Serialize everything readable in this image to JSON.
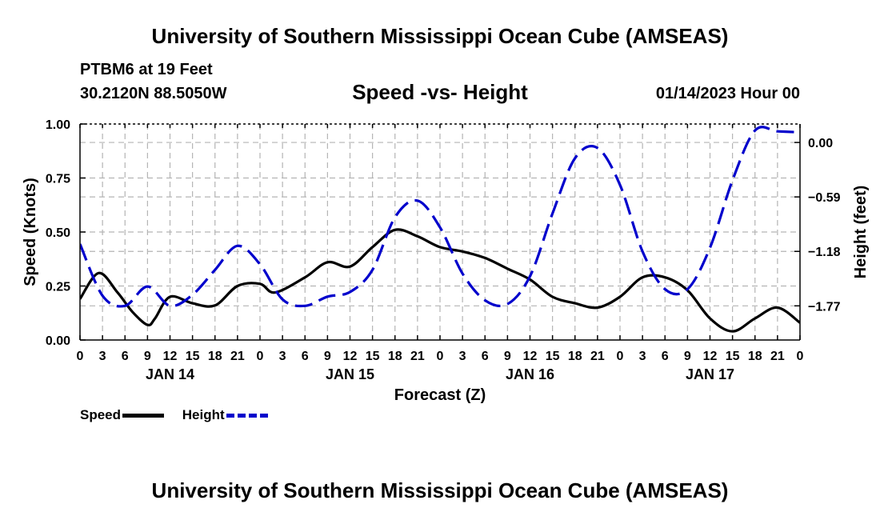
{
  "header": {
    "title": "University of Southern Mississippi Ocean Cube (AMSEAS)",
    "station": "PTBM6 at 19 Feet",
    "coords": "30.2120N  88.5050W",
    "subtitle": "Speed -vs- Height",
    "datestamp": "01/14/2023 Hour 00"
  },
  "footer": {
    "title": "University of Southern Mississippi Ocean Cube (AMSEAS)"
  },
  "colors": {
    "speed": "#000000",
    "height": "#0000cc",
    "grid": "#b4b4b4"
  },
  "legend": {
    "speed_label": "Speed",
    "height_label": "Height"
  },
  "chart_data": {
    "type": "line",
    "title": "Speed -vs- Height",
    "xlabel": "Forecast (Z)",
    "ylabel_left": "Speed (Knots)",
    "ylabel_right": "Height (feet)",
    "xlim": [
      0,
      96
    ],
    "ylim_left": [
      0,
      1.0
    ],
    "ylim_right": [
      -2.14,
      0.2
    ],
    "left_ticks": [
      "0.00",
      "0.25",
      "0.50",
      "0.75",
      "1.00"
    ],
    "right_ticks": [
      {
        "value": 0.0,
        "label": "0.00"
      },
      {
        "value": -0.59,
        "label": "−0.59"
      },
      {
        "value": -1.18,
        "label": "−1.18"
      },
      {
        "value": -1.77,
        "label": "−1.77"
      }
    ],
    "x_tick_labels": [
      "0",
      "3",
      "6",
      "9",
      "12",
      "15",
      "18",
      "21",
      "0",
      "3",
      "6",
      "9",
      "12",
      "15",
      "18",
      "21",
      "0",
      "3",
      "6",
      "9",
      "12",
      "15",
      "18",
      "21",
      "0",
      "3",
      "6",
      "9",
      "12",
      "15",
      "18",
      "21",
      "0"
    ],
    "date_labels": [
      {
        "hour": 12,
        "label": "JAN 14"
      },
      {
        "hour": 36,
        "label": "JAN 15"
      },
      {
        "hour": 60,
        "label": "JAN 16"
      },
      {
        "hour": 84,
        "label": "JAN 17"
      }
    ],
    "grid": true,
    "series": [
      {
        "name": "Speed",
        "axis": "left",
        "style": "solid",
        "x": [
          0,
          2.5,
          5,
          7,
          9,
          10,
          12,
          15,
          18,
          21,
          24,
          26,
          30,
          33,
          36,
          39,
          42,
          45,
          48,
          51,
          54,
          57,
          60,
          63,
          66,
          69,
          72,
          75,
          78,
          81,
          84,
          87,
          90,
          93,
          96
        ],
        "y": [
          0.19,
          0.31,
          0.22,
          0.13,
          0.07,
          0.1,
          0.2,
          0.17,
          0.16,
          0.25,
          0.26,
          0.22,
          0.29,
          0.36,
          0.34,
          0.43,
          0.51,
          0.48,
          0.43,
          0.41,
          0.38,
          0.33,
          0.28,
          0.2,
          0.17,
          0.15,
          0.2,
          0.29,
          0.29,
          0.23,
          0.1,
          0.04,
          0.1,
          0.15,
          0.08
        ]
      },
      {
        "name": "Height",
        "axis": "right",
        "style": "dashed",
        "x": [
          0,
          3,
          6,
          9,
          12,
          15,
          18,
          21,
          24,
          27,
          30,
          33,
          36,
          39,
          42,
          45,
          48,
          51,
          54,
          57,
          60,
          63,
          66,
          69,
          72,
          75,
          78,
          81,
          84,
          87,
          90,
          93,
          96
        ],
        "y": [
          -1.1,
          -1.66,
          -1.77,
          -1.56,
          -1.77,
          -1.65,
          -1.38,
          -1.12,
          -1.32,
          -1.7,
          -1.77,
          -1.67,
          -1.62,
          -1.38,
          -0.81,
          -0.63,
          -0.92,
          -1.42,
          -1.71,
          -1.75,
          -1.45,
          -0.77,
          -0.17,
          -0.06,
          -0.46,
          -1.18,
          -1.59,
          -1.59,
          -1.14,
          -0.41,
          0.13,
          0.12,
          0.11
        ]
      }
    ]
  }
}
